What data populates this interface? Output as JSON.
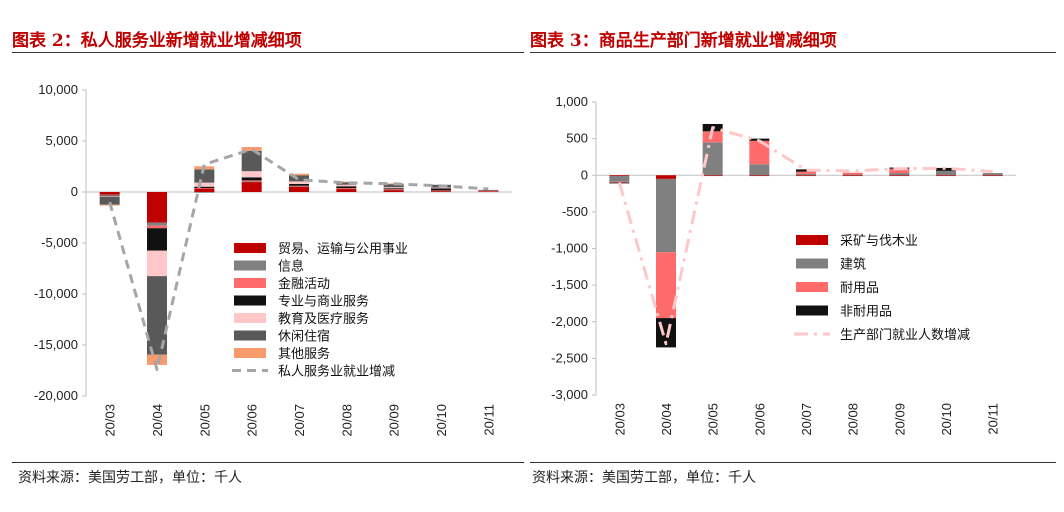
{
  "left": {
    "title": "图表 2：私人服务业新增就业增减细项",
    "source": "资料来源：美国劳工部，单位：千人"
  },
  "right": {
    "title": "图表 3：商品生产部门新增就业增减细项",
    "source": "资料来源：美国劳工部，单位：千人"
  },
  "chart_data": [
    {
      "type": "bar",
      "stacked": true,
      "categories": [
        "20/03",
        "20/04",
        "20/05",
        "20/06",
        "20/07",
        "20/08",
        "20/09",
        "20/10",
        "20/11"
      ],
      "ylim": [
        -20000,
        10000
      ],
      "yticks": [
        10000,
        5000,
        0,
        -5000,
        -10000,
        -15000,
        -20000
      ],
      "ytick_labels": [
        "10,000",
        "5,000",
        "0",
        "-5,000",
        "-10,000",
        "-15,000",
        "-20,000"
      ],
      "series": [
        {
          "name": "贸易、运输与公用事业",
          "color": "#c00000",
          "values": [
            -250,
            -3000,
            350,
            1000,
            520,
            330,
            230,
            120,
            100
          ]
        },
        {
          "name": "信息",
          "color": "#808080",
          "values": [
            -30,
            -300,
            -10,
            40,
            50,
            25,
            10,
            15,
            10
          ]
        },
        {
          "name": "金融活动",
          "color": "#ff6b6b",
          "values": [
            -20,
            -250,
            40,
            100,
            40,
            30,
            30,
            20,
            20
          ]
        },
        {
          "name": "专业与商业服务",
          "color": "#111111",
          "values": [
            -50,
            -2200,
            130,
            300,
            180,
            180,
            100,
            200,
            50
          ]
        },
        {
          "name": "教育及医疗服务",
          "color": "#ffc7c7",
          "values": [
            -100,
            -2500,
            400,
            600,
            250,
            150,
            100,
            80,
            50
          ]
        },
        {
          "name": "休闲住宿",
          "color": "#595959",
          "values": [
            -800,
            -7700,
            1300,
            2000,
            600,
            230,
            300,
            270,
            0
          ]
        },
        {
          "name": "其他服务",
          "color": "#f79a6c",
          "values": [
            -50,
            -1000,
            300,
            370,
            150,
            60,
            70,
            0,
            0
          ]
        }
      ],
      "line": {
        "name": "私人服务业就业增减",
        "color": "#a6a6a6",
        "values": [
          -1000,
          -17400,
          2700,
          4200,
          1200,
          900,
          800,
          600,
          300
        ]
      }
    },
    {
      "type": "bar",
      "stacked": true,
      "categories": [
        "20/03",
        "20/04",
        "20/05",
        "20/06",
        "20/07",
        "20/08",
        "20/09",
        "20/10",
        "20/11"
      ],
      "ylim": [
        -3000,
        1000
      ],
      "yticks": [
        1000,
        500,
        0,
        -500,
        -1000,
        -1500,
        -2000,
        -2500,
        -3000
      ],
      "ytick_labels": [
        "1,000",
        "500",
        "0",
        "-500",
        "-1,000",
        "-1,500",
        "-2,000",
        "-2,500",
        "-3,000"
      ],
      "series": [
        {
          "name": "采矿与伐木业",
          "color": "#c00000",
          "values": [
            -10,
            -50,
            -10,
            -10,
            -7,
            -5,
            -5,
            -5,
            -5
          ]
        },
        {
          "name": "建筑",
          "color": "#808080",
          "values": [
            -80,
            -1000,
            450,
            150,
            20,
            10,
            30,
            60,
            30
          ]
        },
        {
          "name": "耐用品",
          "color": "#ff6b6b",
          "values": [
            -10,
            -900,
            150,
            320,
            30,
            25,
            60,
            0,
            0
          ]
        },
        {
          "name": "非耐用品",
          "color": "#111111",
          "values": [
            -10,
            -400,
            100,
            30,
            30,
            0,
            15,
            40,
            0
          ]
        }
      ],
      "line": {
        "name": "生产部门就业人数增减",
        "color": "#ffc7c7",
        "values": [
          -100,
          -2300,
          650,
          470,
          70,
          60,
          90,
          95,
          50
        ]
      }
    }
  ]
}
